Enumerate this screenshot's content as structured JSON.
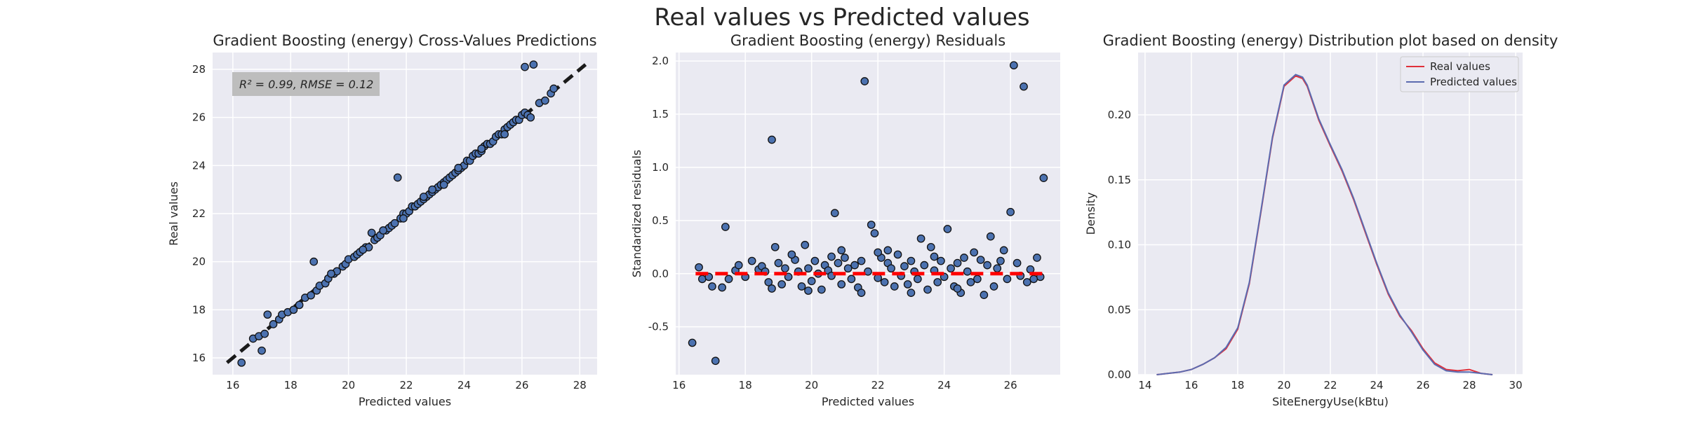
{
  "figure": {
    "suptitle": "Real values vs Predicted values"
  },
  "chart_data": [
    {
      "type": "scatter",
      "title": "Gradient Boosting (energy) Cross-Values Predictions",
      "xlabel": "Predicted values",
      "ylabel": "Real values",
      "xlim": [
        15.3,
        28.6
      ],
      "ylim": [
        15.3,
        28.7
      ],
      "xticks": [
        16,
        18,
        20,
        22,
        24,
        26,
        28
      ],
      "yticks": [
        16,
        18,
        20,
        22,
        24,
        26,
        28
      ],
      "annotation": "R² = 0.99, RMSE = 0.12",
      "reference_line": {
        "x": [
          15.8,
          28.2
        ],
        "y": [
          15.8,
          28.2
        ],
        "style": "dashed",
        "color": "#1a1a1a"
      },
      "point_color": "#4c72b0",
      "points": [
        [
          16.3,
          15.8
        ],
        [
          16.7,
          16.8
        ],
        [
          16.9,
          16.9
        ],
        [
          17.0,
          16.3
        ],
        [
          17.1,
          17.0
        ],
        [
          17.2,
          17.8
        ],
        [
          17.4,
          17.4
        ],
        [
          17.6,
          17.6
        ],
        [
          17.7,
          17.8
        ],
        [
          17.9,
          17.9
        ],
        [
          18.1,
          18.0
        ],
        [
          18.3,
          18.2
        ],
        [
          18.5,
          18.5
        ],
        [
          18.7,
          18.6
        ],
        [
          18.8,
          20.0
        ],
        [
          18.9,
          18.8
        ],
        [
          19.0,
          19.0
        ],
        [
          19.2,
          19.1
        ],
        [
          19.3,
          19.3
        ],
        [
          19.5,
          19.5
        ],
        [
          19.6,
          19.6
        ],
        [
          19.8,
          19.8
        ],
        [
          19.9,
          19.9
        ],
        [
          20.0,
          20.1
        ],
        [
          20.2,
          20.2
        ],
        [
          20.3,
          20.3
        ],
        [
          20.4,
          20.4
        ],
        [
          20.6,
          20.6
        ],
        [
          20.7,
          20.6
        ],
        [
          20.8,
          21.2
        ],
        [
          20.9,
          20.9
        ],
        [
          21.0,
          21.0
        ],
        [
          21.1,
          21.1
        ],
        [
          21.3,
          21.3
        ],
        [
          21.4,
          21.4
        ],
        [
          21.5,
          21.5
        ],
        [
          21.6,
          21.6
        ],
        [
          21.7,
          23.5
        ],
        [
          21.8,
          21.8
        ],
        [
          21.9,
          22.0
        ],
        [
          22.0,
          22.0
        ],
        [
          22.1,
          22.1
        ],
        [
          22.2,
          22.3
        ],
        [
          22.3,
          22.3
        ],
        [
          22.4,
          22.4
        ],
        [
          22.5,
          22.5
        ],
        [
          22.6,
          22.6
        ],
        [
          22.7,
          22.7
        ],
        [
          22.8,
          22.8
        ],
        [
          22.9,
          22.9
        ],
        [
          23.0,
          23.0
        ],
        [
          23.1,
          23.1
        ],
        [
          23.2,
          23.2
        ],
        [
          23.3,
          23.3
        ],
        [
          23.4,
          23.4
        ],
        [
          23.5,
          23.5
        ],
        [
          23.6,
          23.6
        ],
        [
          23.7,
          23.7
        ],
        [
          23.8,
          23.8
        ],
        [
          23.9,
          23.9
        ],
        [
          24.0,
          24.0
        ],
        [
          24.1,
          24.2
        ],
        [
          24.2,
          24.2
        ],
        [
          24.3,
          24.4
        ],
        [
          24.4,
          24.5
        ],
        [
          24.5,
          24.5
        ],
        [
          24.6,
          24.6
        ],
        [
          24.7,
          24.8
        ],
        [
          24.8,
          24.9
        ],
        [
          24.9,
          24.9
        ],
        [
          25.0,
          25.0
        ],
        [
          25.1,
          25.2
        ],
        [
          25.2,
          25.3
        ],
        [
          25.3,
          25.3
        ],
        [
          25.4,
          25.5
        ],
        [
          25.5,
          25.6
        ],
        [
          25.6,
          25.7
        ],
        [
          25.7,
          25.8
        ],
        [
          25.8,
          25.9
        ],
        [
          25.9,
          25.9
        ],
        [
          26.0,
          26.1
        ],
        [
          26.1,
          26.2
        ],
        [
          26.2,
          26.1
        ],
        [
          26.3,
          26.0
        ],
        [
          26.1,
          28.1
        ],
        [
          26.4,
          28.2
        ],
        [
          26.6,
          26.6
        ],
        [
          26.8,
          26.7
        ],
        [
          27.0,
          27.0
        ],
        [
          27.1,
          27.2
        ],
        [
          19.4,
          19.5
        ],
        [
          20.5,
          20.5
        ],
        [
          21.2,
          21.3
        ],
        [
          22.6,
          22.7
        ],
        [
          23.3,
          23.2
        ],
        [
          24.6,
          24.7
        ],
        [
          25.4,
          25.3
        ],
        [
          22.9,
          23.0
        ],
        [
          21.9,
          21.8
        ],
        [
          23.8,
          23.9
        ]
      ]
    },
    {
      "type": "scatter",
      "title": "Gradient Boosting (energy) Residuals",
      "xlabel": "Predicted values",
      "ylabel": "Standardized residuals",
      "xlim": [
        15.9,
        27.5
      ],
      "ylim": [
        -0.95,
        2.08
      ],
      "xticks": [
        16,
        18,
        20,
        22,
        24,
        26
      ],
      "yticks": [
        -0.5,
        0.0,
        0.5,
        1.0,
        1.5,
        2.0
      ],
      "reference_line": {
        "x": [
          16.5,
          27.0
        ],
        "y": [
          0,
          0
        ],
        "style": "dashed",
        "color": "#ff0000"
      },
      "point_color": "#4c72b0",
      "points": [
        [
          16.4,
          -0.65
        ],
        [
          16.6,
          0.06
        ],
        [
          16.7,
          -0.05
        ],
        [
          16.9,
          -0.03
        ],
        [
          17.0,
          -0.12
        ],
        [
          17.1,
          -0.82
        ],
        [
          17.3,
          -0.13
        ],
        [
          17.4,
          0.44
        ],
        [
          17.5,
          -0.05
        ],
        [
          17.7,
          0.03
        ],
        [
          17.8,
          0.08
        ],
        [
          18.0,
          -0.03
        ],
        [
          18.2,
          0.12
        ],
        [
          18.4,
          0.04
        ],
        [
          18.5,
          0.07
        ],
        [
          18.6,
          0.02
        ],
        [
          18.7,
          -0.08
        ],
        [
          18.8,
          1.26
        ],
        [
          18.9,
          0.25
        ],
        [
          19.0,
          0.1
        ],
        [
          19.1,
          -0.1
        ],
        [
          19.2,
          0.05
        ],
        [
          19.3,
          -0.03
        ],
        [
          19.5,
          0.13
        ],
        [
          19.6,
          0.02
        ],
        [
          19.7,
          -0.12
        ],
        [
          19.8,
          0.27
        ],
        [
          19.9,
          0.05
        ],
        [
          20.0,
          -0.07
        ],
        [
          20.1,
          0.12
        ],
        [
          20.2,
          0.0
        ],
        [
          20.3,
          -0.15
        ],
        [
          20.4,
          0.08
        ],
        [
          20.5,
          0.03
        ],
        [
          20.6,
          -0.02
        ],
        [
          20.7,
          0.57
        ],
        [
          20.8,
          0.1
        ],
        [
          20.9,
          -0.1
        ],
        [
          21.0,
          0.15
        ],
        [
          21.1,
          0.05
        ],
        [
          21.2,
          -0.05
        ],
        [
          21.3,
          0.08
        ],
        [
          21.4,
          -0.13
        ],
        [
          21.5,
          0.12
        ],
        [
          21.6,
          1.81
        ],
        [
          21.7,
          0.02
        ],
        [
          21.8,
          0.46
        ],
        [
          21.9,
          0.38
        ],
        [
          22.0,
          -0.04
        ],
        [
          22.1,
          0.15
        ],
        [
          22.2,
          -0.08
        ],
        [
          22.3,
          0.1
        ],
        [
          22.4,
          0.05
        ],
        [
          22.5,
          -0.12
        ],
        [
          22.6,
          0.18
        ],
        [
          22.7,
          -0.02
        ],
        [
          22.8,
          0.07
        ],
        [
          22.9,
          -0.1
        ],
        [
          23.0,
          0.12
        ],
        [
          23.1,
          0.02
        ],
        [
          23.2,
          -0.05
        ],
        [
          23.3,
          0.33
        ],
        [
          23.4,
          0.08
        ],
        [
          23.5,
          -0.15
        ],
        [
          23.6,
          0.25
        ],
        [
          23.7,
          0.03
        ],
        [
          23.8,
          -0.08
        ],
        [
          23.9,
          0.12
        ],
        [
          24.0,
          -0.03
        ],
        [
          24.1,
          0.42
        ],
        [
          24.2,
          0.05
        ],
        [
          24.3,
          -0.12
        ],
        [
          24.4,
          0.1
        ],
        [
          24.5,
          -0.18
        ],
        [
          24.6,
          0.15
        ],
        [
          24.7,
          0.02
        ],
        [
          24.8,
          -0.08
        ],
        [
          24.9,
          0.2
        ],
        [
          25.0,
          -0.05
        ],
        [
          25.1,
          0.13
        ],
        [
          25.2,
          -0.2
        ],
        [
          25.3,
          0.08
        ],
        [
          25.4,
          0.35
        ],
        [
          25.5,
          -0.12
        ],
        [
          25.6,
          0.05
        ],
        [
          25.8,
          0.22
        ],
        [
          25.9,
          -0.05
        ],
        [
          26.0,
          0.58
        ],
        [
          26.1,
          1.96
        ],
        [
          26.2,
          0.1
        ],
        [
          26.3,
          -0.02
        ],
        [
          26.4,
          1.76
        ],
        [
          26.5,
          -0.08
        ],
        [
          26.6,
          0.04
        ],
        [
          26.8,
          0.15
        ],
        [
          26.9,
          -0.03
        ],
        [
          27.0,
          0.9
        ],
        [
          26.7,
          -0.05
        ],
        [
          25.7,
          0.12
        ],
        [
          24.4,
          -0.14
        ],
        [
          19.4,
          0.18
        ],
        [
          20.6,
          0.16
        ],
        [
          21.5,
          -0.18
        ],
        [
          22.3,
          0.22
        ],
        [
          23.0,
          -0.18
        ],
        [
          23.7,
          0.16
        ],
        [
          22.0,
          0.2
        ],
        [
          20.9,
          0.22
        ],
        [
          19.9,
          -0.16
        ],
        [
          18.8,
          -0.14
        ]
      ]
    },
    {
      "type": "line",
      "title": "Gradient Boosting (energy) Distribution plot based on density",
      "xlabel": "SiteEnergyUse(kBtu)",
      "ylabel": "Density",
      "xlim": [
        13.7,
        30.3
      ],
      "ylim": [
        0,
        0.248
      ],
      "xticks": [
        14,
        16,
        18,
        20,
        22,
        24,
        26,
        28,
        30
      ],
      "yticks": [
        0.0,
        0.05,
        0.1,
        0.15,
        0.2
      ],
      "legend": "top-right",
      "series": [
        {
          "name": "Real values",
          "color": "#e0303a",
          "x": [
            14.5,
            15,
            15.5,
            16,
            16.5,
            17,
            17.5,
            18,
            18.5,
            19,
            19.5,
            20,
            20.5,
            20.8,
            21,
            21.5,
            22,
            22.5,
            23,
            23.5,
            24,
            24.5,
            25,
            25.5,
            26,
            26.5,
            27,
            27.5,
            28,
            28.5,
            29
          ],
          "y": [
            0.0,
            0.001,
            0.002,
            0.004,
            0.008,
            0.013,
            0.02,
            0.035,
            0.07,
            0.125,
            0.182,
            0.222,
            0.23,
            0.228,
            0.222,
            0.196,
            0.176,
            0.157,
            0.135,
            0.11,
            0.085,
            0.062,
            0.045,
            0.034,
            0.02,
            0.009,
            0.004,
            0.003,
            0.004,
            0.001,
            0.0
          ]
        },
        {
          "name": "Predicted values",
          "color": "#5b6bb0",
          "x": [
            14.5,
            15,
            15.5,
            16,
            16.5,
            17,
            17.5,
            18,
            18.5,
            19,
            19.5,
            20,
            20.5,
            20.8,
            21,
            21.5,
            22,
            22.5,
            23,
            23.5,
            24,
            24.5,
            25,
            25.5,
            26,
            26.5,
            27,
            27.5,
            28,
            28.5,
            29
          ],
          "y": [
            0.0,
            0.001,
            0.002,
            0.004,
            0.008,
            0.013,
            0.021,
            0.036,
            0.071,
            0.126,
            0.183,
            0.223,
            0.231,
            0.229,
            0.223,
            0.197,
            0.177,
            0.158,
            0.136,
            0.111,
            0.086,
            0.063,
            0.046,
            0.033,
            0.019,
            0.008,
            0.003,
            0.002,
            0.002,
            0.001,
            0.0
          ]
        }
      ]
    }
  ]
}
